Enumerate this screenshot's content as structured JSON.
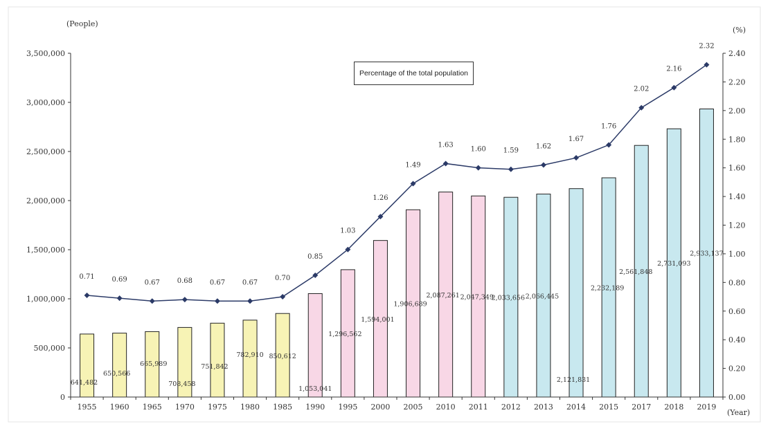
{
  "chart_data": {
    "type": "bar",
    "y_left_unit": "(People)",
    "y_right_unit": "(%)",
    "x_unit": "(Year)",
    "legend": "Percentage of the total population",
    "categories": [
      "1955",
      "1960",
      "1965",
      "1970",
      "1975",
      "1980",
      "1985",
      "1990",
      "1995",
      "2000",
      "2005",
      "2010",
      "2011",
      "2012",
      "2013",
      "2014",
      "2015",
      "2017",
      "2018",
      "2019"
    ],
    "population": [
      641482,
      650566,
      665989,
      708458,
      751842,
      782910,
      850612,
      1053041,
      1296562,
      1594001,
      1906689,
      2087261,
      2047349,
      2033656,
      2066445,
      2121831,
      2232189,
      2561848,
      2731093,
      2933137
    ],
    "population_labels": [
      "641,482",
      "650,566",
      "665,989",
      "708,458",
      "751,842",
      "782,910",
      "850,612",
      "1,053,041",
      "1,296,562",
      "1,594,001",
      "1,906,689",
      "2,087,261",
      "2,047,349",
      "2,033,656",
      "2,066,445",
      "2,121,831",
      "2,232,189",
      "2,561,848",
      "2,731,093",
      "2,933,137"
    ],
    "percentage": [
      0.71,
      0.69,
      0.67,
      0.68,
      0.67,
      0.67,
      0.7,
      0.85,
      1.03,
      1.26,
      1.49,
      1.63,
      1.6,
      1.59,
      1.62,
      1.67,
      1.76,
      2.02,
      2.16,
      2.32
    ],
    "percentage_labels": [
      "0.71",
      "0.69",
      "0.67",
      "0.68",
      "0.67",
      "0.67",
      "0.70",
      "0.85",
      "1.03",
      "1.26",
      "1.49",
      "1.63",
      "1.60",
      "1.59",
      "1.62",
      "1.67",
      "1.76",
      "2.02",
      "2.16",
      "2.32"
    ],
    "bar_colors": [
      "#f7f3b5",
      "#f7f3b5",
      "#f7f3b5",
      "#f7f3b5",
      "#f7f3b5",
      "#f7f3b5",
      "#f7f3b5",
      "#f8d7e6",
      "#f8d7e6",
      "#f8d7e6",
      "#f8d7e6",
      "#f8d7e6",
      "#f8d7e6",
      "#c8e8ef",
      "#c8e8ef",
      "#c8e8ef",
      "#c8e8ef",
      "#c8e8ef",
      "#c8e8ef",
      "#c8e8ef"
    ],
    "line_color": "#2b3a67",
    "y_left_ticks": [
      "0",
      "500,000",
      "1,000,000",
      "1,500,000",
      "2,000,000",
      "2,500,000",
      "3,000,000",
      "3,500,000"
    ],
    "y_left_range": [
      0,
      3500000
    ],
    "y_right_ticks": [
      "0.00",
      "0.20",
      "0.40",
      "0.60",
      "0.80",
      "1.00",
      "1.20",
      "1.40",
      "1.60",
      "1.80",
      "2.00",
      "2.20",
      "2.40"
    ],
    "y_right_range": [
      0,
      2.4
    ],
    "grid": false
  }
}
